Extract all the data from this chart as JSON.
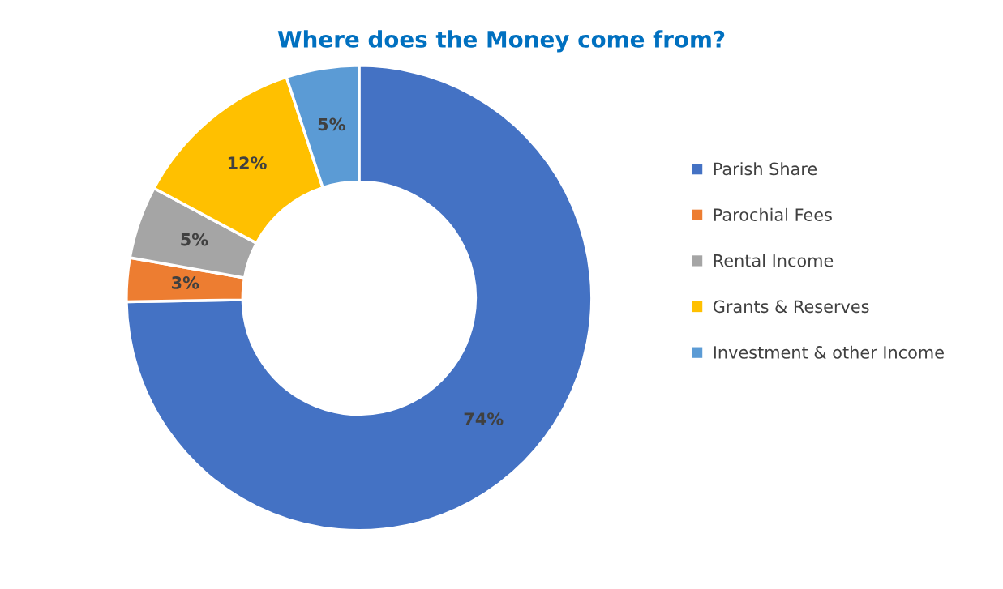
{
  "chart_data": {
    "type": "donut",
    "title": "Where does the Money come from?",
    "categories": [
      "Parish Share",
      "Parochial Fees",
      "Rental Income",
      "Grants & Reserves",
      "Investment & other Income"
    ],
    "values": [
      74,
      3,
      5,
      12,
      5
    ],
    "colors": [
      "#4472c4",
      "#ed7d31",
      "#a5a5a5",
      "#ffc000",
      "#5b9bd5"
    ],
    "value_labels": [
      "74%",
      "3%",
      "5%",
      "12%",
      "5%"
    ],
    "legend": "right"
  }
}
